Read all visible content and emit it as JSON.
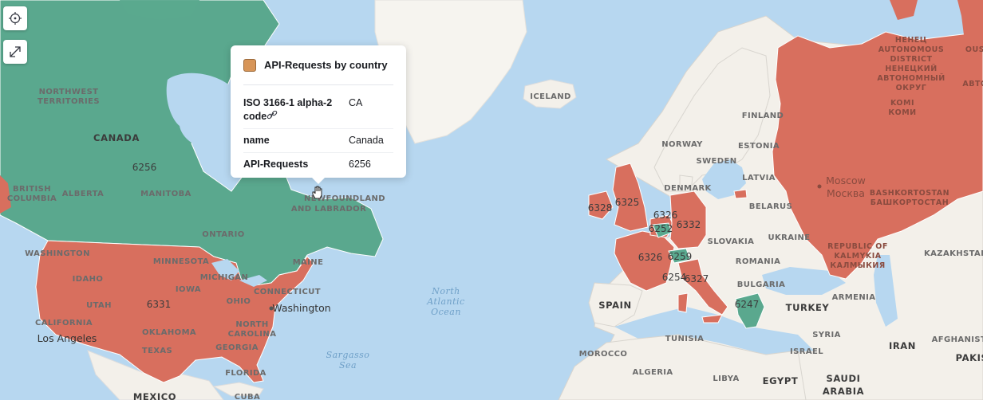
{
  "colors": {
    "ocean": "#b7d7f0",
    "land": "#f3f0ea",
    "teal": "#5aa88e",
    "coral": "#d86f5e",
    "border": "#ffffff",
    "swatch": "#d79558"
  },
  "icons": {
    "locate": "crosshair-icon",
    "expand": "expand-icon",
    "cursor": "hand-cursor-icon"
  },
  "tooltip": {
    "title": "API-Requests by country",
    "rows": [
      {
        "key": "ISO 3166-1 alpha-2 code",
        "val": "CA"
      },
      {
        "key": "name",
        "val": "Canada"
      },
      {
        "key": "API-Requests",
        "val": "6256"
      }
    ]
  },
  "labels": {
    "northwest_territories": [
      "NORTHWEST",
      "TERRITORIES"
    ],
    "canada": "CANADA",
    "british_columbia": [
      "BRITISH",
      "COLUMBIA"
    ],
    "alberta": "ALBERTA",
    "manitoba": "MANITOBA",
    "ontario": "ONTARIO",
    "newfoundland": [
      "NEWFOUNDLAND",
      "AND LABRADOR"
    ],
    "washington_state": "WASHINGTON",
    "idaho": "IDAHO",
    "minnesota": "MINNESOTA",
    "michigan": "MICHIGAN",
    "maine": "MAINE",
    "iowa": "IOWA",
    "utah": "UTAH",
    "ohio": "OHIO",
    "connecticut": "CONNECTICUT",
    "california": "CALIFORNIA",
    "oklahoma": "OKLAHOMA",
    "north_carolina": [
      "NORTH",
      "CAROLINA"
    ],
    "texas": "TEXAS",
    "georgia": "GEORGIA",
    "florida": "FLORIDA",
    "mexico": "MEXICO",
    "cuba": "CUBA",
    "washington_city": "Washington",
    "los_angeles": "Los Angeles",
    "north_atlantic": [
      "North",
      "Atlantic",
      "Ocean"
    ],
    "sargasso": [
      "Sargasso",
      "Sea"
    ],
    "iceland": "ICELAND",
    "finland": "FINLAND",
    "norway": "NORWAY",
    "estonia": "ESTONIA",
    "sweden": "SWEDEN",
    "latvia": "LATVIA",
    "denmark": "DENMARK",
    "belarus": "BELARUS",
    "ukraine": "UKRAINE",
    "slovakia": "SLOVAKIA",
    "romania": "ROMANIA",
    "bulgaria": "BULGARIA",
    "spain": "SPAIN",
    "turkey": "TURKEY",
    "armenia": "ARMENIA",
    "syria": "SYRIA",
    "israel": "ISRAEL",
    "iran": "IRAN",
    "afghanistan": "AFGHANISTAN",
    "pakis": "PAKIS",
    "kazakhstan": "KAZAKHSTAN",
    "tunisia": "TUNISIA",
    "morocco": "MOROCCO",
    "algeria": "ALGERIA",
    "libya": "LIBYA",
    "egypt": "EGYPT",
    "saudi": [
      "SAUDI",
      "ARABIA"
    ],
    "moscow": [
      "Moscow",
      "Москва"
    ],
    "nenets": [
      "НЕНЕЦ",
      "AUTONOMOUS",
      "DISTRICT",
      "НЕНЕЦКИЙ",
      "АВТОНОМНЫЙ",
      "ОКРУГ"
    ],
    "komi": [
      "KOMI",
      "КОМИ"
    ],
    "bashkortostan": [
      "BASHKORTOSTAN",
      "БАШКОРТОСТАН"
    ],
    "kalmykia": [
      "REPUBLIC OF",
      "KALMYKIA",
      "КАЛМЫКИЯ"
    ],
    "avto": "АВТО",
    "ous": "OUS"
  },
  "values": {
    "canada": "6256",
    "usa": "6331",
    "uk": "6325",
    "ireland": "6328",
    "netherlands": "6326",
    "germany": "6332",
    "belgium": "6252",
    "france": "6326",
    "switzerland": "6259",
    "italy_n": "6254",
    "italy": "6327",
    "greece": "6247"
  }
}
